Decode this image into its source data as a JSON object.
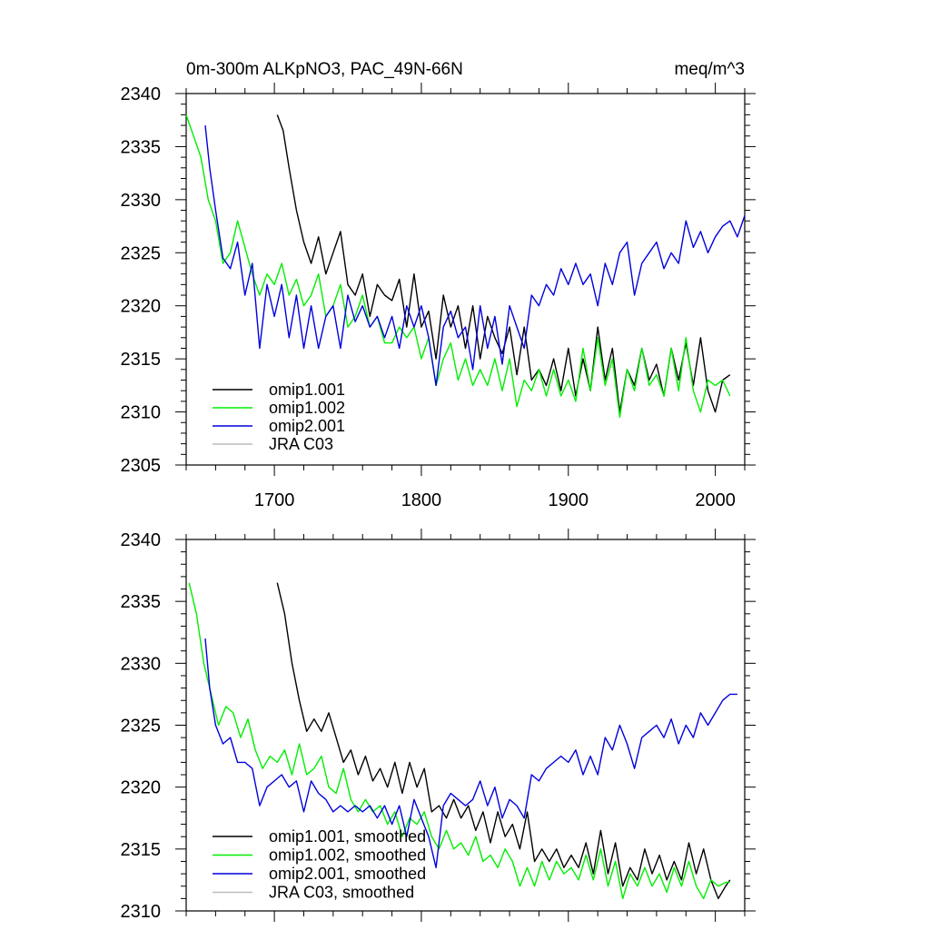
{
  "header": {
    "title": "0m-300m ALKpNO3, PAC_49N-66N",
    "units": "meq/m^3"
  },
  "chart_data": [
    {
      "type": "line",
      "xlim": [
        1640,
        2020
      ],
      "ylim": [
        2305,
        2340
      ],
      "xticks": [
        "1700",
        "1800",
        "1900",
        "2000"
      ],
      "yticks": [
        "2305",
        "2310",
        "2315",
        "2320",
        "2325",
        "2330",
        "2335",
        "2340"
      ],
      "legend_position": "bottom-left",
      "series": [
        {
          "name": "omip1.001",
          "color": "#000000",
          "x": [
            1702,
            1706,
            1710,
            1715,
            1720,
            1725,
            1730,
            1735,
            1740,
            1745,
            1750,
            1755,
            1760,
            1765,
            1770,
            1775,
            1780,
            1785,
            1790,
            1795,
            1800,
            1805,
            1810,
            1815,
            1820,
            1825,
            1830,
            1835,
            1840,
            1845,
            1850,
            1855,
            1860,
            1865,
            1870,
            1875,
            1880,
            1885,
            1890,
            1895,
            1900,
            1905,
            1910,
            1915,
            1920,
            1925,
            1930,
            1935,
            1940,
            1945,
            1950,
            1955,
            1960,
            1965,
            1970,
            1975,
            1980,
            1985,
            1990,
            1995,
            2000,
            2005,
            2010
          ],
          "values": [
            2338,
            2336.5,
            2333,
            2329,
            2326,
            2324,
            2326.5,
            2323,
            2325,
            2327,
            2322,
            2321,
            2323,
            2319,
            2322,
            2321,
            2320.5,
            2322.5,
            2318,
            2323,
            2318,
            2319.5,
            2315,
            2321,
            2318,
            2320,
            2316,
            2320,
            2315,
            2319,
            2317,
            2315.5,
            2318,
            2313.5,
            2318,
            2313,
            2314,
            2312.5,
            2315,
            2312,
            2316,
            2311.5,
            2315,
            2312,
            2318,
            2313,
            2316,
            2310,
            2314,
            2312.5,
            2316,
            2313,
            2314.5,
            2311.5,
            2316,
            2313,
            2316.5,
            2312.5,
            2317,
            2312,
            2310,
            2313,
            2313.5
          ]
        },
        {
          "name": "omip1.002",
          "color": "#00ee00",
          "x": [
            1640,
            1645,
            1650,
            1655,
            1660,
            1665,
            1670,
            1675,
            1680,
            1685,
            1690,
            1695,
            1700,
            1705,
            1710,
            1715,
            1720,
            1725,
            1730,
            1735,
            1740,
            1745,
            1750,
            1755,
            1760,
            1765,
            1770,
            1775,
            1780,
            1785,
            1790,
            1795,
            1800,
            1805,
            1810,
            1815,
            1820,
            1825,
            1830,
            1835,
            1840,
            1845,
            1850,
            1855,
            1860,
            1865,
            1870,
            1875,
            1880,
            1885,
            1890,
            1895,
            1900,
            1905,
            1910,
            1915,
            1920,
            1925,
            1930,
            1935,
            1940,
            1945,
            1950,
            1955,
            1960,
            1965,
            1970,
            1975,
            1980,
            1985,
            1990,
            1995,
            2000,
            2005,
            2010
          ],
          "values": [
            2338,
            2336,
            2334,
            2330,
            2328,
            2324,
            2325,
            2328,
            2325.5,
            2323,
            2321,
            2323,
            2322,
            2324,
            2321,
            2322.5,
            2320,
            2321,
            2323,
            2319,
            2320,
            2322,
            2318,
            2319,
            2321,
            2318,
            2319,
            2316.5,
            2316.5,
            2318,
            2317,
            2318,
            2315,
            2317,
            2312.5,
            2315,
            2316.5,
            2313,
            2315,
            2312.5,
            2314,
            2312.5,
            2315,
            2312,
            2315,
            2310.5,
            2313,
            2312,
            2314,
            2311.5,
            2314,
            2311.5,
            2313,
            2311,
            2316,
            2312,
            2317,
            2312.5,
            2315,
            2309.5,
            2314,
            2312,
            2316,
            2312.5,
            2313.5,
            2311.5,
            2316,
            2312,
            2317,
            2312,
            2310,
            2313,
            2312.5,
            2313,
            2311.5
          ]
        },
        {
          "name": "omip2.001",
          "color": "#0000dd",
          "x": [
            1653,
            1656,
            1660,
            1665,
            1670,
            1675,
            1680,
            1685,
            1690,
            1695,
            1700,
            1705,
            1710,
            1715,
            1720,
            1725,
            1730,
            1735,
            1740,
            1745,
            1750,
            1755,
            1760,
            1765,
            1770,
            1775,
            1780,
            1785,
            1790,
            1795,
            1800,
            1805,
            1810,
            1815,
            1820,
            1825,
            1830,
            1835,
            1840,
            1845,
            1850,
            1855,
            1860,
            1865,
            1870,
            1875,
            1880,
            1885,
            1890,
            1895,
            1900,
            1905,
            1910,
            1915,
            1920,
            1925,
            1930,
            1935,
            1940,
            1945,
            1950,
            1955,
            1960,
            1965,
            1970,
            1975,
            1980,
            1985,
            1990,
            1995,
            2000,
            2005,
            2010,
            2015,
            2020
          ],
          "values": [
            2337,
            2333,
            2329,
            2324.5,
            2323.5,
            2326,
            2321,
            2324,
            2316,
            2322,
            2319,
            2322,
            2317,
            2321,
            2316,
            2320,
            2316,
            2319,
            2320,
            2316,
            2321,
            2318.5,
            2320,
            2318,
            2319,
            2317,
            2319,
            2316,
            2320,
            2318,
            2320,
            2317,
            2312.5,
            2318,
            2319.5,
            2317,
            2318,
            2314,
            2320,
            2316,
            2319,
            2314.5,
            2320,
            2318,
            2316,
            2321,
            2320,
            2322,
            2321,
            2323.5,
            2322,
            2324,
            2322,
            2323,
            2320,
            2324,
            2322,
            2325,
            2326,
            2321,
            2324,
            2325,
            2326,
            2323.5,
            2325,
            2324,
            2328,
            2325.5,
            2327,
            2325,
            2326.5,
            2327.5,
            2328,
            2326.5,
            2328.5
          ]
        },
        {
          "name": "JRA C03",
          "color": "#bbbbbb",
          "x": [],
          "values": []
        }
      ]
    },
    {
      "type": "line",
      "xlim": [
        1640,
        2020
      ],
      "ylim": [
        2310,
        2340
      ],
      "yticks": [
        "2310",
        "2315",
        "2320",
        "2325",
        "2330",
        "2335",
        "2340"
      ],
      "legend_position": "bottom-left",
      "series": [
        {
          "name": "omip1.001, smoothed",
          "color": "#000000",
          "x": [
            1702,
            1707,
            1712,
            1717,
            1722,
            1727,
            1732,
            1737,
            1742,
            1747,
            1752,
            1757,
            1762,
            1767,
            1772,
            1777,
            1782,
            1787,
            1792,
            1797,
            1802,
            1807,
            1812,
            1817,
            1822,
            1827,
            1832,
            1837,
            1842,
            1847,
            1852,
            1857,
            1862,
            1867,
            1872,
            1877,
            1882,
            1887,
            1892,
            1897,
            1902,
            1907,
            1912,
            1917,
            1922,
            1927,
            1932,
            1937,
            1942,
            1947,
            1952,
            1957,
            1962,
            1967,
            1972,
            1977,
            1982,
            1987,
            1992,
            1997,
            2002,
            2007,
            2010
          ],
          "values": [
            2336.5,
            2334,
            2330,
            2327,
            2324.5,
            2325.5,
            2324.5,
            2326,
            2324,
            2322,
            2323,
            2321,
            2322.5,
            2320.5,
            2321.5,
            2320,
            2322,
            2319.5,
            2322,
            2320,
            2321.5,
            2318,
            2318.5,
            2317.5,
            2319,
            2317.5,
            2318.5,
            2316.5,
            2318,
            2315.5,
            2318,
            2316,
            2317,
            2315,
            2318,
            2314,
            2315,
            2314,
            2315,
            2313.5,
            2314.5,
            2313.5,
            2315.5,
            2313,
            2316.5,
            2313,
            2315.5,
            2312,
            2313.5,
            2312.5,
            2315,
            2313,
            2314.5,
            2312.5,
            2314,
            2312.5,
            2315.5,
            2313,
            2315,
            2312.5,
            2311,
            2312,
            2312.5
          ]
        },
        {
          "name": "omip1.002, smoothed",
          "color": "#00ee00",
          "x": [
            1642,
            1647,
            1652,
            1657,
            1662,
            1667,
            1672,
            1677,
            1682,
            1687,
            1692,
            1697,
            1702,
            1707,
            1712,
            1717,
            1722,
            1727,
            1732,
            1737,
            1742,
            1747,
            1752,
            1757,
            1762,
            1767,
            1772,
            1777,
            1782,
            1787,
            1792,
            1797,
            1802,
            1807,
            1812,
            1817,
            1822,
            1827,
            1832,
            1837,
            1842,
            1847,
            1852,
            1857,
            1862,
            1867,
            1872,
            1877,
            1882,
            1887,
            1892,
            1897,
            1902,
            1907,
            1912,
            1917,
            1922,
            1927,
            1932,
            1937,
            1942,
            1947,
            1952,
            1957,
            1962,
            1967,
            1972,
            1977,
            1982,
            1987,
            1992,
            1997,
            2002,
            2007,
            2010
          ],
          "values": [
            2336.5,
            2334,
            2330,
            2327.5,
            2325,
            2326.5,
            2326,
            2324,
            2325.5,
            2323,
            2321.5,
            2322.5,
            2322,
            2323,
            2321,
            2323.5,
            2321,
            2321.5,
            2322.5,
            2320,
            2319.5,
            2321.5,
            2319,
            2318,
            2319,
            2318,
            2318.5,
            2317,
            2318,
            2316,
            2317.5,
            2317,
            2318,
            2316,
            2315,
            2316.5,
            2315,
            2315.5,
            2314.5,
            2316,
            2314,
            2314.5,
            2313.5,
            2315,
            2314,
            2312,
            2313.5,
            2312,
            2314,
            2312.5,
            2314,
            2313,
            2313.5,
            2312.5,
            2314.5,
            2312.5,
            2315,
            2312,
            2314,
            2311,
            2313,
            2312,
            2313.5,
            2312,
            2313,
            2311.5,
            2313.5,
            2312,
            2314,
            2312,
            2311,
            2312.5,
            2312,
            2312.3,
            2312.3
          ]
        },
        {
          "name": "omip2.001, smoothed",
          "color": "#0000dd",
          "x": [
            1653,
            1656,
            1660,
            1665,
            1670,
            1675,
            1680,
            1685,
            1690,
            1695,
            1700,
            1705,
            1710,
            1715,
            1720,
            1725,
            1730,
            1735,
            1740,
            1745,
            1750,
            1755,
            1760,
            1765,
            1770,
            1775,
            1780,
            1785,
            1790,
            1795,
            1800,
            1805,
            1810,
            1815,
            1820,
            1825,
            1830,
            1835,
            1840,
            1845,
            1850,
            1855,
            1860,
            1865,
            1870,
            1875,
            1880,
            1885,
            1890,
            1895,
            1900,
            1905,
            1910,
            1915,
            1920,
            1925,
            1930,
            1935,
            1940,
            1945,
            1950,
            1955,
            1960,
            1965,
            1970,
            1975,
            1980,
            1985,
            1990,
            1995,
            2000,
            2005,
            2010,
            2015
          ],
          "values": [
            2332,
            2328,
            2325,
            2323.5,
            2324,
            2322,
            2322,
            2321.5,
            2318.5,
            2320,
            2320.5,
            2321,
            2320,
            2320.5,
            2318,
            2320.5,
            2319.5,
            2319,
            2318,
            2318.5,
            2318,
            2318.5,
            2318,
            2318.5,
            2317.5,
            2318.5,
            2317,
            2318.5,
            2316,
            2319,
            2317.5,
            2316,
            2313.5,
            2318.5,
            2319.5,
            2319,
            2318.5,
            2319,
            2320.5,
            2318.5,
            2320,
            2317.5,
            2319,
            2318.5,
            2317.5,
            2321,
            2320.5,
            2321.5,
            2322,
            2322.5,
            2322,
            2323,
            2321,
            2322.5,
            2321,
            2324,
            2323,
            2325,
            2323.5,
            2321.5,
            2324,
            2324.5,
            2325,
            2324,
            2325.5,
            2323.5,
            2325,
            2324,
            2326,
            2325,
            2326,
            2327,
            2327.5,
            2327.5
          ]
        },
        {
          "name": "JRA C03, smoothed",
          "color": "#bbbbbb",
          "x": [],
          "values": []
        }
      ]
    }
  ]
}
